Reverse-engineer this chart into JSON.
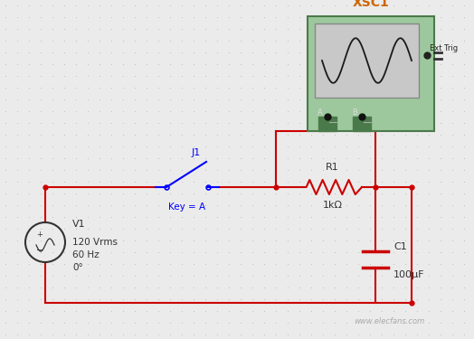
{
  "bg_color": "#ebebeb",
  "dot_color": "#b8b8b8",
  "wire_color": "#cc0000",
  "circuit": {
    "source_label": "V1",
    "source_specs": [
      "120 Vrms",
      "60 Hz",
      "0°"
    ],
    "switch_label": "J1",
    "switch_key": "Key = A",
    "resistor_label": "R1",
    "resistor_value": "1kΩ",
    "capacitor_label": "C1",
    "capacitor_value": "100μF",
    "osc_label": "XSC1",
    "ext_trig": "Ext Trig"
  },
  "watermark": "www.elecfans.com",
  "layout": {
    "fig_w": 5.24,
    "fig_h": 3.75,
    "dpi": 100
  }
}
